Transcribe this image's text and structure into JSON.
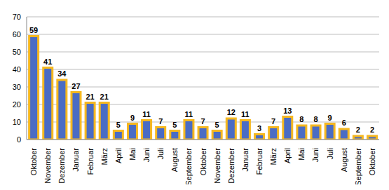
{
  "chart_data": {
    "type": "bar",
    "categories": [
      "Oktober",
      "November",
      "Dezember",
      "Januar",
      "Februar",
      "März",
      "April",
      "Mai",
      "Juni",
      "Juli",
      "August",
      "September",
      "Oktober",
      "November",
      "Dezember",
      "Januar",
      "Februar",
      "März",
      "April",
      "Mai",
      "Juni",
      "Juli",
      "August",
      "September",
      "Oktober"
    ],
    "values": [
      59,
      41,
      34,
      27,
      21,
      21,
      5,
      9,
      11,
      7,
      5,
      11,
      7,
      5,
      12,
      11,
      3,
      7,
      13,
      8,
      8,
      9,
      6,
      2,
      2
    ],
    "color": "#4a6cc4",
    "ylim": [
      0,
      70
    ],
    "yticks": [
      0,
      10,
      20,
      30,
      40,
      50,
      60,
      70
    ],
    "grid": true,
    "data_labels": true
  }
}
